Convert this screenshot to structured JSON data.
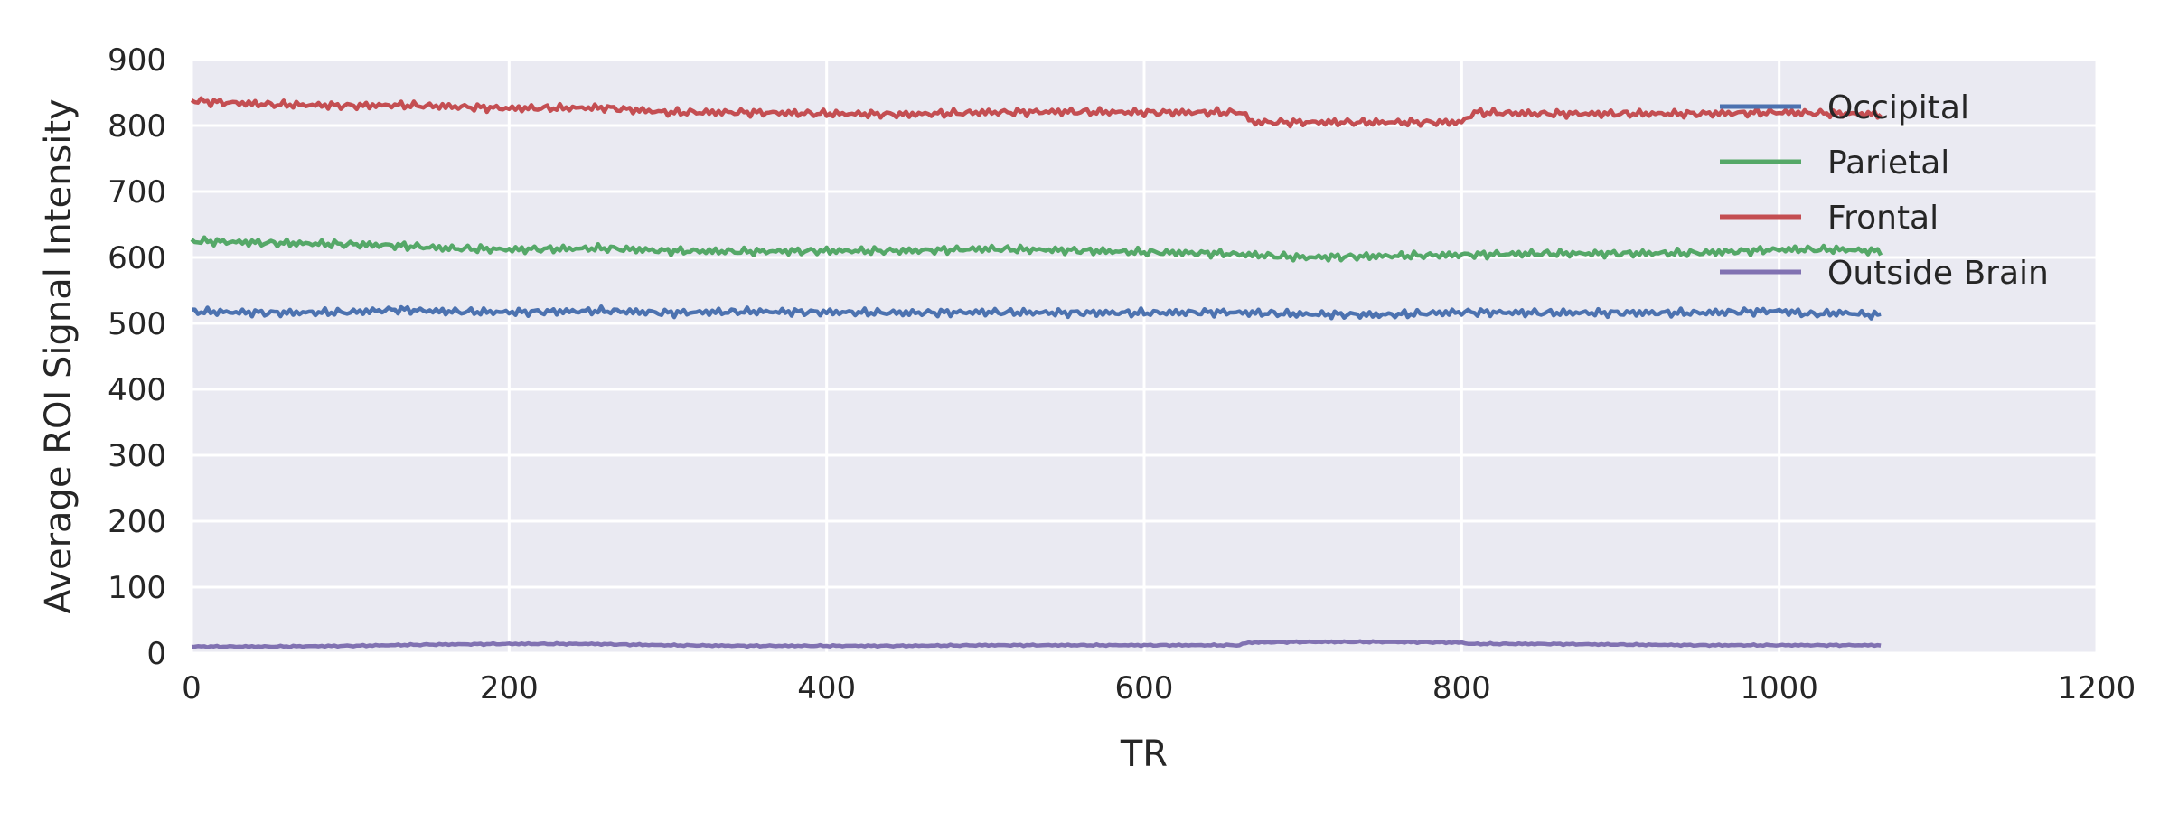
{
  "chart_data": {
    "type": "line",
    "title": "",
    "xlabel": "TR",
    "ylabel": "Average ROI Signal Intensity",
    "xlim": [
      0,
      1200
    ],
    "ylim": [
      0,
      900
    ],
    "xticks": [
      0,
      200,
      400,
      600,
      800,
      1000,
      1200
    ],
    "yticks": [
      0,
      100,
      200,
      300,
      400,
      500,
      600,
      700,
      800,
      900
    ],
    "grid": true,
    "legend_position": "top-right",
    "background": "#EAEAF2",
    "series": [
      {
        "name": "Occipital",
        "color": "#4C72B0",
        "x": [
          0,
          50,
          100,
          130,
          160,
          200,
          260,
          300,
          350,
          400,
          450,
          500,
          550,
          600,
          650,
          700,
          750,
          800,
          850,
          900,
          950,
          1000,
          1020,
          1040,
          1065
        ],
        "y": [
          518,
          516,
          517,
          521,
          518,
          517,
          519,
          516,
          518,
          517,
          516,
          517,
          516,
          516,
          517,
          514,
          513,
          517,
          516,
          516,
          516,
          519,
          514,
          516,
          512
        ]
      },
      {
        "name": "Parietal",
        "color": "#55A868",
        "x": [
          0,
          50,
          100,
          130,
          160,
          200,
          260,
          300,
          350,
          400,
          450,
          500,
          550,
          600,
          650,
          700,
          750,
          800,
          850,
          900,
          950,
          1000,
          1040,
          1065
        ],
        "y": [
          625,
          622,
          620,
          618,
          614,
          612,
          614,
          610,
          609,
          610,
          610,
          613,
          611,
          608,
          606,
          600,
          602,
          604,
          606,
          606,
          607,
          612,
          612,
          609
        ]
      },
      {
        "name": "Frontal",
        "color": "#C44E52",
        "x": [
          0,
          10,
          50,
          100,
          130,
          160,
          200,
          260,
          300,
          350,
          400,
          450,
          500,
          550,
          600,
          650,
          662,
          668,
          700,
          750,
          800,
          808,
          850,
          900,
          950,
          1000,
          1040,
          1065
        ],
        "y": [
          838,
          836,
          832,
          830,
          831,
          829,
          826,
          827,
          820,
          820,
          818,
          817,
          820,
          821,
          820,
          820,
          820,
          805,
          805,
          805,
          805,
          820,
          818,
          818,
          818,
          820,
          818,
          817
        ]
      },
      {
        "name": "Outside Brain",
        "color": "#8172B2",
        "x": [
          0,
          50,
          100,
          150,
          200,
          250,
          300,
          350,
          400,
          450,
          500,
          550,
          600,
          660,
          665,
          700,
          750,
          800,
          805,
          850,
          900,
          950,
          1000,
          1040,
          1065
        ],
        "y": [
          10,
          10,
          11,
          13,
          14,
          14,
          12,
          11,
          11,
          11,
          12,
          12,
          12,
          12,
          16,
          17,
          17,
          16,
          14,
          14,
          13,
          12,
          12,
          12,
          12
        ]
      }
    ]
  }
}
